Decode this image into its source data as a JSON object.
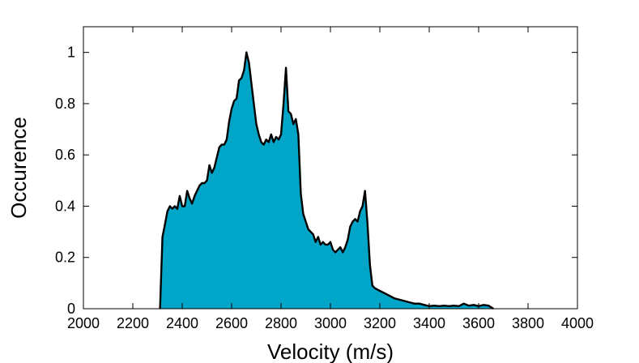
{
  "chart_data": {
    "type": "area",
    "title": "",
    "xlabel": "Velocity (m/s)",
    "ylabel": "Occurence",
    "xlim": [
      2000,
      4000
    ],
    "ylim": [
      0,
      1.1
    ],
    "xticks": [
      "2000",
      "2200",
      "2400",
      "2600",
      "2800",
      "3000",
      "3200",
      "3400",
      "3600",
      "3800",
      "4000"
    ],
    "yticks": [
      "0",
      "0.2",
      "0.4",
      "0.6",
      "0.8",
      "1"
    ],
    "grid": false,
    "legend": "none",
    "fill_color": "#00a5c7",
    "line_color": "#000000",
    "series": [
      {
        "x": [
          2310,
          2320,
          2330,
          2340,
          2350,
          2360,
          2370,
          2380,
          2390,
          2400,
          2410,
          2420,
          2430,
          2440,
          2450,
          2460,
          2470,
          2480,
          2490,
          2500,
          2510,
          2520,
          2530,
          2540,
          2550,
          2560,
          2570,
          2580,
          2590,
          2600,
          2610,
          2620,
          2630,
          2640,
          2650,
          2660,
          2670,
          2680,
          2690,
          2700,
          2710,
          2720,
          2730,
          2740,
          2750,
          2760,
          2770,
          2780,
          2790,
          2800,
          2810,
          2820,
          2830,
          2840,
          2850,
          2860,
          2870,
          2880,
          2890,
          2900,
          2910,
          2920,
          2930,
          2940,
          2950,
          2960,
          2970,
          2980,
          2990,
          3000,
          3010,
          3020,
          3030,
          3040,
          3050,
          3060,
          3070,
          3080,
          3090,
          3100,
          3110,
          3120,
          3130,
          3140,
          3150,
          3160,
          3170,
          3180,
          3200,
          3220,
          3240,
          3260,
          3280,
          3300,
          3320,
          3340,
          3360,
          3380,
          3400,
          3420,
          3440,
          3460,
          3480,
          3500,
          3520,
          3540,
          3560,
          3580,
          3600,
          3620,
          3640,
          3660
        ],
        "y": [
          0,
          0.28,
          0.33,
          0.38,
          0.4,
          0.39,
          0.4,
          0.39,
          0.44,
          0.4,
          0.4,
          0.46,
          0.43,
          0.41,
          0.44,
          0.46,
          0.48,
          0.49,
          0.49,
          0.5,
          0.56,
          0.53,
          0.55,
          0.59,
          0.63,
          0.64,
          0.64,
          0.66,
          0.73,
          0.78,
          0.81,
          0.82,
          0.89,
          0.9,
          0.93,
          1.0,
          0.96,
          0.88,
          0.8,
          0.72,
          0.68,
          0.65,
          0.64,
          0.66,
          0.65,
          0.68,
          0.65,
          0.67,
          0.66,
          0.68,
          0.8,
          0.94,
          0.77,
          0.76,
          0.72,
          0.74,
          0.68,
          0.45,
          0.37,
          0.34,
          0.31,
          0.3,
          0.29,
          0.26,
          0.28,
          0.25,
          0.26,
          0.25,
          0.25,
          0.26,
          0.23,
          0.22,
          0.23,
          0.24,
          0.22,
          0.24,
          0.27,
          0.32,
          0.34,
          0.35,
          0.34,
          0.38,
          0.4,
          0.46,
          0.33,
          0.17,
          0.09,
          0.08,
          0.07,
          0.06,
          0.05,
          0.04,
          0.035,
          0.03,
          0.025,
          0.02,
          0.02,
          0.015,
          0.01,
          0.012,
          0.01,
          0.012,
          0.01,
          0.012,
          0.01,
          0.02,
          0.012,
          0.015,
          0.01,
          0.015,
          0.012,
          0
        ]
      }
    ]
  }
}
